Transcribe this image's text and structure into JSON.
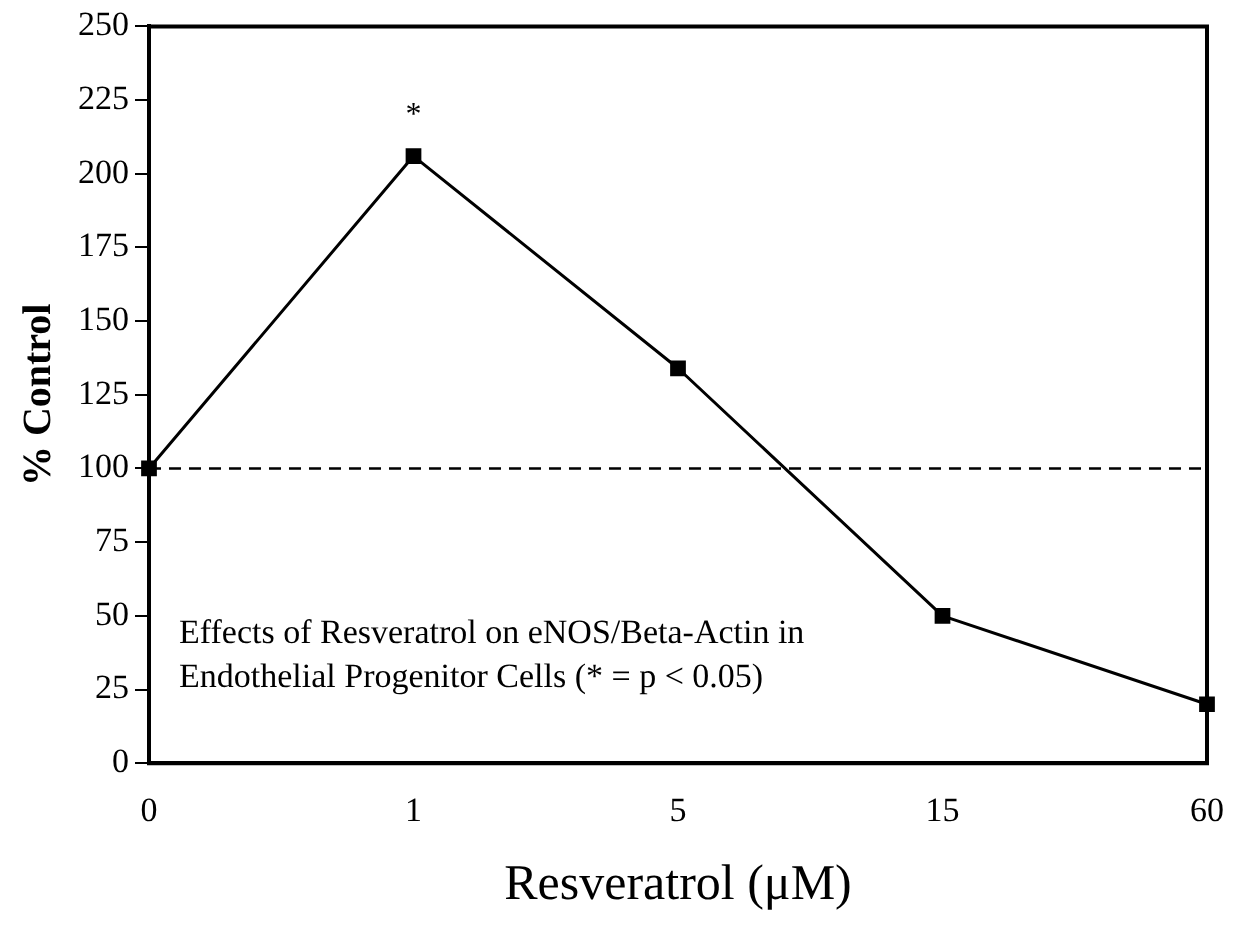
{
  "chart_data": {
    "type": "line",
    "xlabel": "Resveratrol (μM)",
    "ylabel": "% Control",
    "categories": [
      "0",
      "1",
      "5",
      "15",
      "60"
    ],
    "series": [
      {
        "color": "#000000",
        "values": [
          100,
          206,
          134,
          50,
          20
        ]
      }
    ],
    "ylim": [
      0,
      250
    ],
    "yticks": [
      0,
      25,
      50,
      75,
      100,
      125,
      150,
      175,
      200,
      225,
      250
    ],
    "grid": false,
    "legend": false,
    "marker": "square",
    "line_style": "solid",
    "ref_lines": [
      {
        "axis": "y",
        "value": 100,
        "color": "#000000",
        "line_style": "dashed"
      }
    ],
    "annotations": [
      {
        "text": "*",
        "x": "1",
        "y": 206
      },
      "Effects of Resveratrol on eNOS/Beta-Actin in\nEndothelial Progenitor Cells (* = p < 0.05)"
    ]
  }
}
